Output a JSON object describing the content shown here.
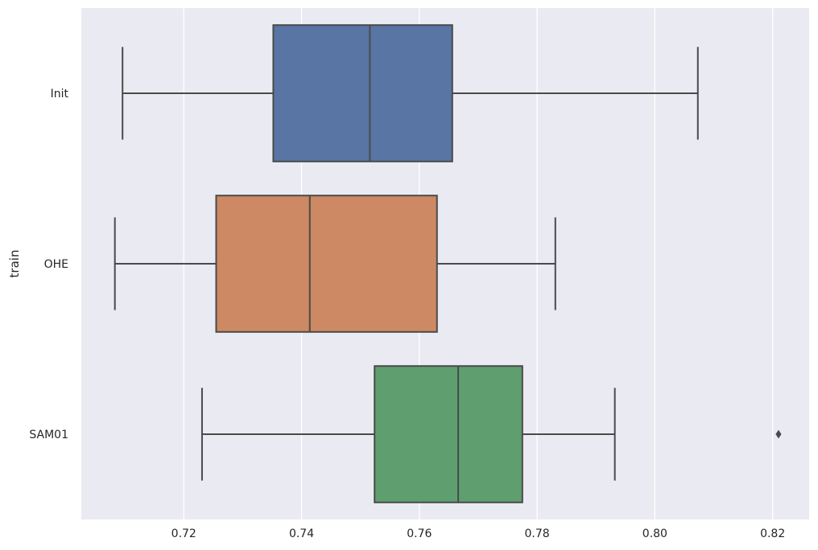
{
  "chart_data": {
    "type": "box",
    "orientation": "horizontal",
    "title": "",
    "xlabel": "",
    "ylabel": "train",
    "xlim": [
      0.7026,
      0.8262
    ],
    "xticks": [
      0.72,
      0.74,
      0.76,
      0.78,
      0.8,
      0.82
    ],
    "xtick_labels": [
      "0.72",
      "0.74",
      "0.76",
      "0.78",
      "0.80",
      "0.82"
    ],
    "grid": true,
    "background": "#eaeaf2",
    "categories": [
      "Init",
      "OHE",
      "SAM01"
    ],
    "boxes": [
      {
        "category": "Init",
        "whisker_low": 0.7096,
        "q1": 0.7352,
        "median": 0.7516,
        "q3": 0.7656,
        "whisker_high": 0.8073,
        "outliers": [],
        "color": "#5875a4"
      },
      {
        "category": "OHE",
        "whisker_low": 0.7083,
        "q1": 0.7255,
        "median": 0.7414,
        "q3": 0.763,
        "whisker_high": 0.7831,
        "outliers": [],
        "color": "#cc8963"
      },
      {
        "category": "SAM01",
        "whisker_low": 0.7231,
        "q1": 0.7524,
        "median": 0.7666,
        "q3": 0.7775,
        "whisker_high": 0.7932,
        "outliers": [
          0.821
        ],
        "color": "#5f9e6e"
      }
    ]
  }
}
